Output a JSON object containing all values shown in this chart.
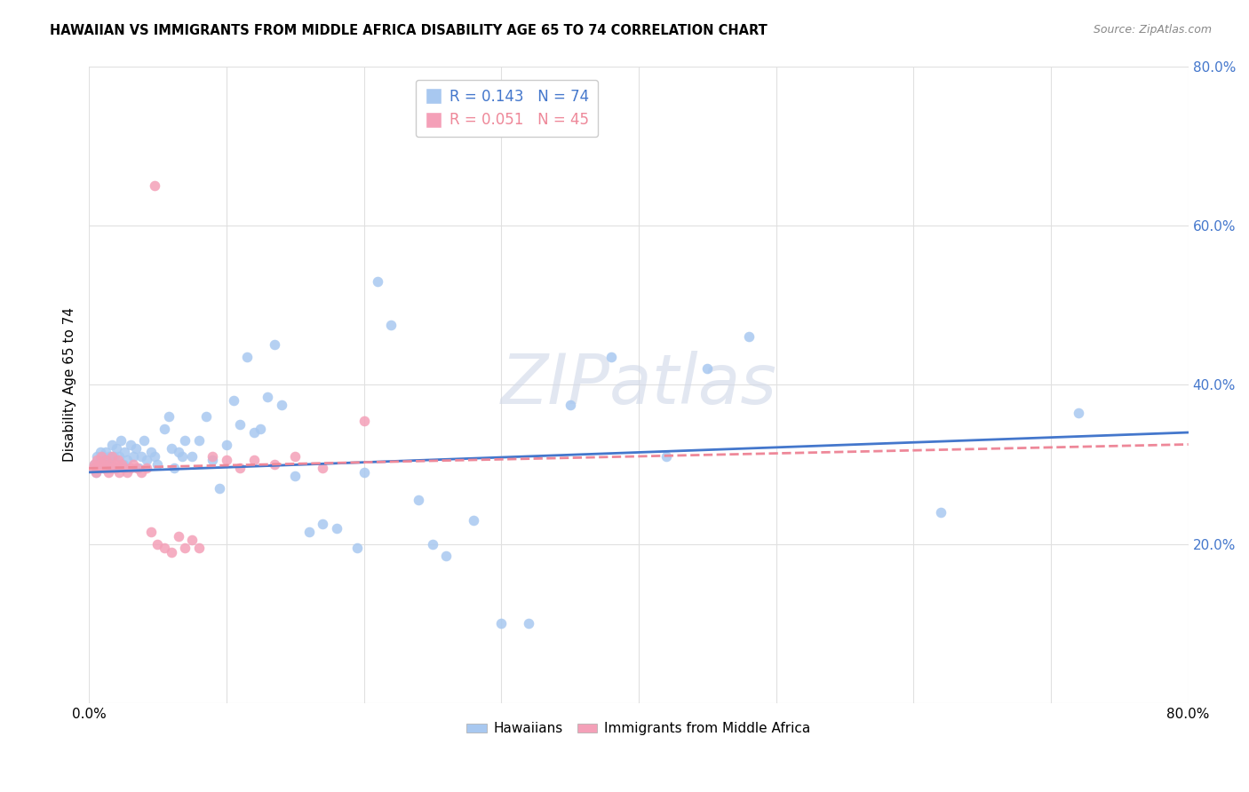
{
  "title": "HAWAIIAN VS IMMIGRANTS FROM MIDDLE AFRICA DISABILITY AGE 65 TO 74 CORRELATION CHART",
  "source": "Source: ZipAtlas.com",
  "ylabel": "Disability Age 65 to 74",
  "xlim": [
    0.0,
    0.8
  ],
  "ylim": [
    0.0,
    0.8
  ],
  "hawaiian_R": 0.143,
  "hawaiian_N": 74,
  "immigrant_R": 0.051,
  "immigrant_N": 45,
  "hawaiian_color": "#a8c8f0",
  "immigrant_color": "#f4a0b8",
  "hawaiian_line_color": "#4477cc",
  "immigrant_line_color": "#ee8899",
  "hawaiian_points_x": [
    0.004,
    0.005,
    0.006,
    0.007,
    0.008,
    0.008,
    0.009,
    0.01,
    0.011,
    0.012,
    0.013,
    0.015,
    0.016,
    0.017,
    0.018,
    0.019,
    0.02,
    0.022,
    0.023,
    0.025,
    0.026,
    0.028,
    0.03,
    0.032,
    0.034,
    0.036,
    0.038,
    0.04,
    0.042,
    0.045,
    0.048,
    0.05,
    0.055,
    0.058,
    0.06,
    0.062,
    0.065,
    0.068,
    0.07,
    0.075,
    0.08,
    0.085,
    0.09,
    0.095,
    0.1,
    0.105,
    0.11,
    0.115,
    0.12,
    0.125,
    0.13,
    0.135,
    0.14,
    0.15,
    0.16,
    0.17,
    0.18,
    0.195,
    0.2,
    0.21,
    0.22,
    0.24,
    0.25,
    0.26,
    0.28,
    0.3,
    0.32,
    0.35,
    0.38,
    0.42,
    0.45,
    0.48,
    0.62,
    0.72
  ],
  "hawaiian_points_y": [
    0.3,
    0.29,
    0.31,
    0.295,
    0.305,
    0.315,
    0.3,
    0.31,
    0.295,
    0.315,
    0.305,
    0.31,
    0.3,
    0.325,
    0.31,
    0.295,
    0.32,
    0.31,
    0.33,
    0.3,
    0.315,
    0.305,
    0.325,
    0.31,
    0.32,
    0.295,
    0.31,
    0.33,
    0.305,
    0.315,
    0.31,
    0.3,
    0.345,
    0.36,
    0.32,
    0.295,
    0.315,
    0.31,
    0.33,
    0.31,
    0.33,
    0.36,
    0.305,
    0.27,
    0.325,
    0.38,
    0.35,
    0.435,
    0.34,
    0.345,
    0.385,
    0.45,
    0.375,
    0.285,
    0.215,
    0.225,
    0.22,
    0.195,
    0.29,
    0.53,
    0.475,
    0.255,
    0.2,
    0.185,
    0.23,
    0.1,
    0.1,
    0.375,
    0.435,
    0.31,
    0.42,
    0.46,
    0.24,
    0.365
  ],
  "immigrant_points_x": [
    0.003,
    0.004,
    0.005,
    0.006,
    0.007,
    0.008,
    0.009,
    0.01,
    0.011,
    0.012,
    0.013,
    0.014,
    0.015,
    0.016,
    0.017,
    0.018,
    0.019,
    0.02,
    0.021,
    0.022,
    0.024,
    0.026,
    0.028,
    0.03,
    0.032,
    0.035,
    0.038,
    0.042,
    0.045,
    0.05,
    0.055,
    0.06,
    0.065,
    0.07,
    0.075,
    0.08,
    0.09,
    0.1,
    0.11,
    0.12,
    0.135,
    0.15,
    0.17,
    0.2,
    0.048
  ],
  "immigrant_points_y": [
    0.295,
    0.3,
    0.29,
    0.305,
    0.295,
    0.3,
    0.31,
    0.295,
    0.3,
    0.305,
    0.295,
    0.29,
    0.3,
    0.295,
    0.31,
    0.295,
    0.3,
    0.295,
    0.305,
    0.29,
    0.3,
    0.295,
    0.29,
    0.295,
    0.3,
    0.295,
    0.29,
    0.295,
    0.215,
    0.2,
    0.195,
    0.19,
    0.21,
    0.195,
    0.205,
    0.195,
    0.31,
    0.305,
    0.295,
    0.305,
    0.3,
    0.31,
    0.295,
    0.355,
    0.65
  ],
  "h_trend_x0": 0.0,
  "h_trend_y0": 0.29,
  "h_trend_x1": 0.8,
  "h_trend_y1": 0.34,
  "i_trend_x0": 0.0,
  "i_trend_y0": 0.295,
  "i_trend_x1": 0.8,
  "i_trend_y1": 0.325
}
